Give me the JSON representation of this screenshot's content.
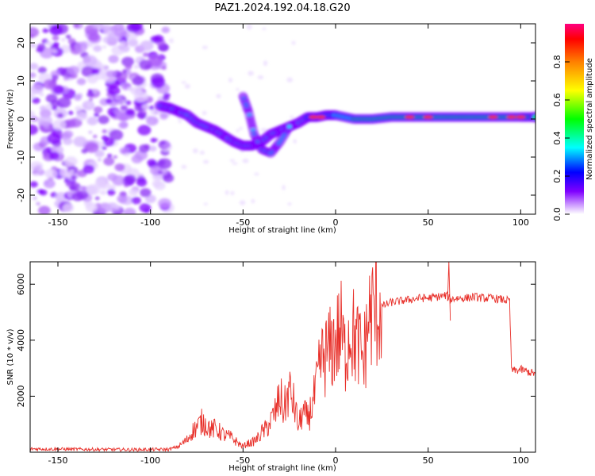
{
  "figure": {
    "title": "PAZ1.2024.192.04.18.G20"
  },
  "chart_data": [
    {
      "type": "heatmap",
      "title": "PAZ1.2024.192.04.18.G20",
      "xlabel": "Height of straight line (km)",
      "ylabel": "Frequency (Hz)",
      "xlim": [
        -165,
        108
      ],
      "ylim": [
        -25,
        25
      ],
      "x_ticks": [
        -150,
        -100,
        -50,
        0,
        50,
        100
      ],
      "y_ticks": [
        -20,
        -10,
        0,
        10,
        20
      ],
      "colorbar": {
        "label": "Normalized spectral amplitude",
        "range": [
          0,
          1
        ],
        "ticks": [
          0.0,
          0.2,
          0.4,
          0.6,
          0.8
        ],
        "tick_labels": [
          "0.0",
          "0.2",
          "0.4",
          "0.6",
          "0.8"
        ],
        "colormap": [
          "#ffffff",
          "#cc99ff",
          "#7f00ff",
          "#0000ff",
          "#00ffff",
          "#00ff00",
          "#ffff00",
          "#ff8000",
          "#ff0000",
          "#ff0080"
        ]
      },
      "ridge": {
        "x": [
          -95,
          -90,
          -85,
          -80,
          -75,
          -70,
          -65,
          -60,
          -55,
          -50,
          -45,
          -40,
          -35,
          -30,
          -25,
          -20,
          -15,
          -10,
          -5,
          0,
          10,
          20,
          30,
          40,
          50,
          60,
          70,
          80,
          90,
          100,
          108
        ],
        "frequency": [
          3.5,
          3,
          2,
          1,
          -1,
          -2,
          -3,
          -4.5,
          -6,
          -7,
          -7,
          -6,
          -4,
          -3,
          -2,
          -1,
          0.5,
          0.5,
          1,
          1,
          0,
          0,
          0.5,
          0.5,
          0.5,
          0.5,
          0.5,
          0.5,
          0.5,
          0.5,
          0.5
        ]
      },
      "secondary_ridge": {
        "x": [
          -50,
          -47,
          -44,
          -40,
          -35,
          -30,
          -25
        ],
        "frequency": [
          6,
          2,
          -4,
          -8,
          -9,
          -6,
          -2
        ]
      },
      "noise_region": [
        -165,
        -90
      ]
    },
    {
      "type": "line",
      "xlabel": "Height of straight line (km)",
      "ylabel": "SNR (10 * v/v)",
      "xlim": [
        -165,
        108
      ],
      "ylim": [
        0,
        6800
      ],
      "x_ticks": [
        -150,
        -100,
        -50,
        0,
        50,
        100
      ],
      "y_ticks": [
        2000,
        4000,
        6000
      ],
      "color": "#e8302a",
      "series": [
        {
          "x": [
            -165,
            -150,
            -130,
            -110,
            -90,
            -85,
            -80,
            -78,
            -75,
            -72,
            -70,
            -67,
            -65,
            -62,
            -60,
            -57,
            -55,
            -52,
            -50,
            -48,
            -45,
            -42,
            -40,
            -38,
            -35,
            -32,
            -30,
            -28,
            -25,
            -22,
            -20,
            -18,
            -15,
            -12,
            -10,
            -8,
            -5,
            -2,
            0,
            3,
            5,
            8,
            10,
            13,
            15,
            18,
            20,
            25,
            30,
            35,
            40,
            45,
            50,
            55,
            60,
            62,
            65,
            70,
            75,
            80,
            85,
            90,
            94,
            95,
            96,
            100,
            105,
            108
          ],
          "values": [
            120,
            110,
            100,
            90,
            100,
            200,
            450,
            700,
            900,
            1100,
            1000,
            800,
            850,
            700,
            600,
            550,
            450,
            300,
            200,
            300,
            350,
            500,
            700,
            800,
            1100,
            1500,
            2000,
            1500,
            2200,
            1600,
            900,
            1400,
            1200,
            1800,
            2400,
            3200,
            3500,
            3700,
            4000,
            4300,
            3500,
            4500,
            4100,
            3700,
            3300,
            4800,
            5000,
            5200,
            5350,
            5400,
            5450,
            5500,
            5500,
            5550,
            5600,
            5450,
            5500,
            5500,
            5550,
            5500,
            5500,
            5450,
            5400,
            3000,
            2900,
            2950,
            2850,
            2800
          ]
        }
      ]
    }
  ]
}
